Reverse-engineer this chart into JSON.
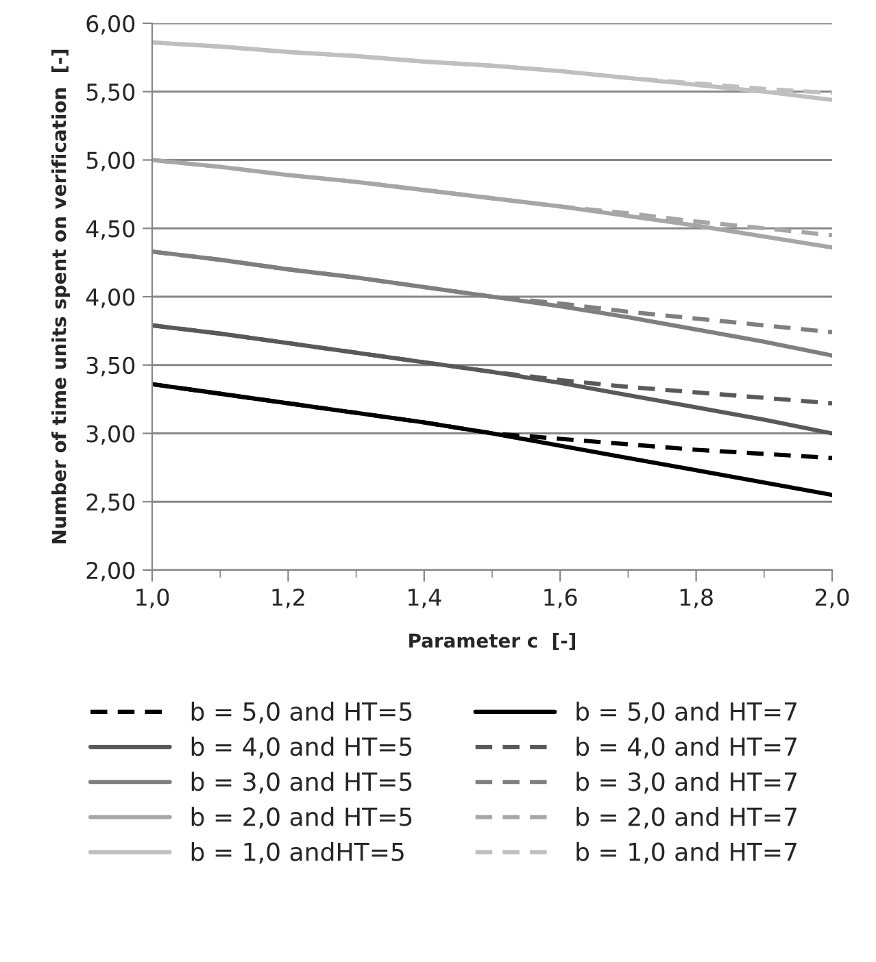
{
  "chart_data": {
    "type": "line",
    "xlabel": "Parameter c  [-]",
    "ylabel": "Number of time units spent on verification  [-]",
    "x": [
      1.0,
      1.1,
      1.2,
      1.3,
      1.4,
      1.5,
      1.6,
      1.7,
      1.8,
      1.9,
      2.0
    ],
    "xlim": [
      1.0,
      2.0
    ],
    "xticks": [
      {
        "value": 1.0,
        "label": "1,0"
      },
      {
        "value": 1.2,
        "label": "1,2"
      },
      {
        "value": 1.4,
        "label": "1,4"
      },
      {
        "value": 1.6,
        "label": "1,6"
      },
      {
        "value": 1.8,
        "label": "1,8"
      },
      {
        "value": 2.0,
        "label": "2,0"
      }
    ],
    "ylim": [
      2.0,
      6.0
    ],
    "yticks": [
      {
        "value": 2.0,
        "label": "2,00"
      },
      {
        "value": 2.5,
        "label": "2,50"
      },
      {
        "value": 3.0,
        "label": "3,00"
      },
      {
        "value": 3.5,
        "label": "3,50"
      },
      {
        "value": 4.0,
        "label": "4,00"
      },
      {
        "value": 4.5,
        "label": "4,50"
      },
      {
        "value": 5.0,
        "label": "5,00"
      },
      {
        "value": 5.5,
        "label": "5,50"
      },
      {
        "value": 6.0,
        "label": "6,00"
      }
    ],
    "grid": "y",
    "legend": "bottom",
    "series": [
      {
        "name": "b = 5,0 and HT=5",
        "color": "#000000",
        "line_style": "dashed",
        "values": [
          3.36,
          3.29,
          3.22,
          3.15,
          3.08,
          3.0,
          2.96,
          2.92,
          2.88,
          2.85,
          2.82
        ]
      },
      {
        "name": "b = 5,0 and HT=7",
        "color": "#000000",
        "line_style": "solid",
        "values": [
          3.36,
          3.29,
          3.22,
          3.15,
          3.08,
          3.0,
          2.91,
          2.82,
          2.73,
          2.64,
          2.55
        ]
      },
      {
        "name": "b = 4,0 and HT=5",
        "color": "#595959",
        "line_style": "solid",
        "values": [
          3.79,
          3.73,
          3.66,
          3.59,
          3.52,
          3.45,
          3.37,
          3.28,
          3.19,
          3.1,
          3.0
        ]
      },
      {
        "name": "b = 4,0 and HT=7",
        "color": "#595959",
        "line_style": "dashed",
        "values": [
          3.79,
          3.73,
          3.66,
          3.59,
          3.52,
          3.45,
          3.39,
          3.34,
          3.3,
          3.26,
          3.22
        ]
      },
      {
        "name": "b = 3,0 and HT=5",
        "color": "#7f7f7f",
        "line_style": "solid",
        "values": [
          4.33,
          4.27,
          4.2,
          4.14,
          4.07,
          4.0,
          3.93,
          3.85,
          3.76,
          3.67,
          3.57
        ]
      },
      {
        "name": "b = 3,0 and HT=7",
        "color": "#7f7f7f",
        "line_style": "dashed",
        "values": [
          4.33,
          4.27,
          4.2,
          4.14,
          4.07,
          4.0,
          3.95,
          3.89,
          3.84,
          3.79,
          3.74
        ]
      },
      {
        "name": "b = 2,0 and HT=5",
        "color": "#a6a6a6",
        "line_style": "solid",
        "values": [
          5.0,
          4.95,
          4.89,
          4.84,
          4.78,
          4.72,
          4.66,
          4.59,
          4.52,
          4.44,
          4.36
        ]
      },
      {
        "name": "b = 2,0 and HT=7",
        "color": "#a6a6a6",
        "line_style": "dashed",
        "values": [
          5.0,
          4.95,
          4.89,
          4.84,
          4.78,
          4.72,
          4.66,
          4.61,
          4.55,
          4.5,
          4.45
        ]
      },
      {
        "name": "b = 1,0 andHT=5",
        "color": "#bfbfbf",
        "line_style": "solid",
        "values": [
          5.86,
          5.83,
          5.79,
          5.76,
          5.72,
          5.69,
          5.65,
          5.6,
          5.55,
          5.5,
          5.44
        ]
      },
      {
        "name": "b = 1,0 and HT=7",
        "color": "#bfbfbf",
        "line_style": "dashed",
        "values": [
          5.86,
          5.83,
          5.79,
          5.76,
          5.72,
          5.69,
          5.65,
          5.6,
          5.56,
          5.52,
          5.49
        ]
      }
    ]
  }
}
